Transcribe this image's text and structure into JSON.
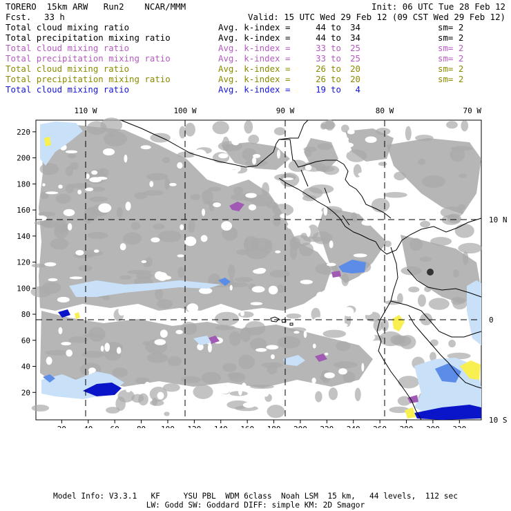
{
  "header": {
    "model_line": "TORERO  15km ARW   Run2    NCAR/MMM",
    "fcst_label": "Fcst.",
    "fcst_value": "33 h",
    "init": "Init: 06 UTC Tue 28 Feb 12",
    "valid": "Valid: 15 UTC Wed 29 Feb 12 (09 CST Wed 29 Feb 12)"
  },
  "legend": [
    {
      "name": "Total cloud mixing ratio",
      "avg": "Avg. k-index =",
      "from": "44",
      "to_word": "to",
      "to": "34",
      "sm": "sm= 2",
      "color": "#000000"
    },
    {
      "name": "Total precipitation mixing ratio",
      "avg": "Avg. k-index =",
      "from": "44",
      "to_word": "to",
      "to": "34",
      "sm": "sm= 2",
      "color": "#000000"
    },
    {
      "name": "Total cloud mixing ratio",
      "avg": "Avg. k-index =",
      "from": "33",
      "to_word": "to",
      "to": "25",
      "sm": "sm= 2",
      "color": "#b45bc0"
    },
    {
      "name": "Total precipitation mixing ratio",
      "avg": "Avg. k-index =",
      "from": "33",
      "to_word": "to",
      "to": "25",
      "sm": "sm= 2",
      "color": "#b45bc0"
    },
    {
      "name": "Total cloud mixing ratio",
      "avg": "Avg. k-index =",
      "from": "26",
      "to_word": "to",
      "to": "20",
      "sm": "sm= 2",
      "color": "#8a8a00"
    },
    {
      "name": "Total precipitation mixing ratio",
      "avg": "Avg. k-index =",
      "from": "26",
      "to_word": "to",
      "to": "20",
      "sm": "sm= 2",
      "color": "#8a8a00"
    },
    {
      "name": "Total cloud mixing ratio",
      "avg": "Avg. k-index =",
      "from": "19",
      "to_word": "to",
      "to": "4",
      "sm": "",
      "color": "#1414dc"
    }
  ],
  "map": {
    "top_lon_labels": [
      "110 W",
      "100 W",
      "90 W",
      "80 W",
      "70 W"
    ],
    "right_lat_labels": [
      "10 N",
      "0",
      "10 S"
    ],
    "left_y_ticks": [
      "220",
      "200",
      "180",
      "160",
      "140",
      "120",
      "100",
      "80",
      "60",
      "40",
      "20"
    ],
    "bottom_x_ticks": [
      "20",
      "40",
      "60",
      "80",
      "100",
      "120",
      "140",
      "160",
      "180",
      "200",
      "220",
      "240",
      "260",
      "280",
      "300",
      "320"
    ],
    "colors": {
      "cloud_gray": "#a9a9a9",
      "light_blue": "#c8e0f8",
      "mid_blue": "#5a8ce8",
      "deep_blue": "#0a14c8",
      "purple": "#a05ab4",
      "yellow": "#f8f050",
      "coast": "#000000"
    }
  },
  "footer": {
    "line1": "Model Info: V3.3.1   KF     YSU PBL  WDM 6class  Noah LSM  15 km,   44 levels,  112 sec",
    "line2": "LW: Godd SW: Goddard DIFF: simple KM: 2D Smagor"
  }
}
